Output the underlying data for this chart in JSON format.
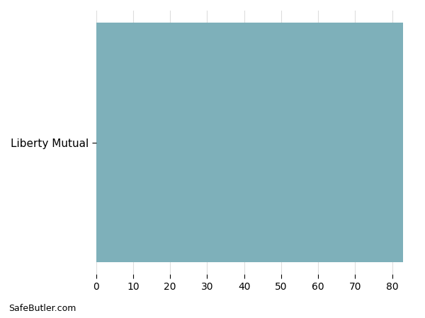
{
  "categories": [
    "Liberty Mutual"
  ],
  "values": [
    83
  ],
  "bar_color": "#7eb0ba",
  "xlim": [
    0,
    86
  ],
  "xticks": [
    0,
    10,
    20,
    30,
    40,
    50,
    60,
    70,
    80
  ],
  "grid_color": "#dddddd",
  "background_color": "#ffffff",
  "watermark": "SafeButler.com",
  "bar_height": 0.92
}
